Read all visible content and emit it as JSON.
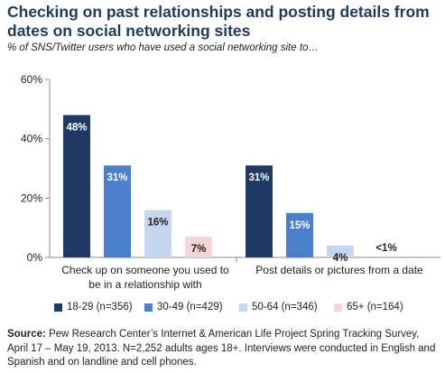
{
  "title": "Checking on past relationships and posting details from dates on social networking sites",
  "subtitle": "% of SNS/Twitter users who have used a social networking site to…",
  "source_label": "Source:",
  "source_text": "Pew Research Center’s Internet & American Life Project Spring Tracking Survey, April 17 – May 19, 2013. N=2,252 adults ages 18+. Interviews were conducted in English and Spanish and on landline and cell phones.",
  "chart_data": {
    "type": "bar",
    "categories": [
      "Check up on someone you used to be in a relationship with",
      "Post details or pictures from a date"
    ],
    "category_lines": [
      [
        "Check up on someone you used to",
        "be in a relationship with"
      ],
      [
        "Post details or pictures from a date"
      ]
    ],
    "series": [
      {
        "name": "18-29 (n=356)",
        "color": "#1f3864",
        "label_color": "#ffffff",
        "values": [
          48,
          31
        ],
        "labels": [
          "48%",
          "31%"
        ]
      },
      {
        "name": "30-49 (n=429)",
        "color": "#4a7fcb",
        "label_color": "#ffffff",
        "values": [
          31,
          15
        ],
        "labels": [
          "31%",
          "15%"
        ]
      },
      {
        "name": "50-64 (n=346)",
        "color": "#c5d7ef",
        "label_color": "#222222",
        "values": [
          16,
          4
        ],
        "labels": [
          "16%",
          "4%"
        ]
      },
      {
        "name": "65+ (n=164)",
        "color": "#f4d6d6",
        "label_color": "#222222",
        "values": [
          7,
          0.5
        ],
        "labels": [
          "7%",
          "<1%"
        ]
      }
    ],
    "yticks": [
      0,
      20,
      40,
      60
    ],
    "ytick_labels": [
      "0%",
      "20%",
      "40%",
      "60%"
    ],
    "ylim": [
      0,
      60
    ],
    "grid": false,
    "legend": "bottom"
  }
}
